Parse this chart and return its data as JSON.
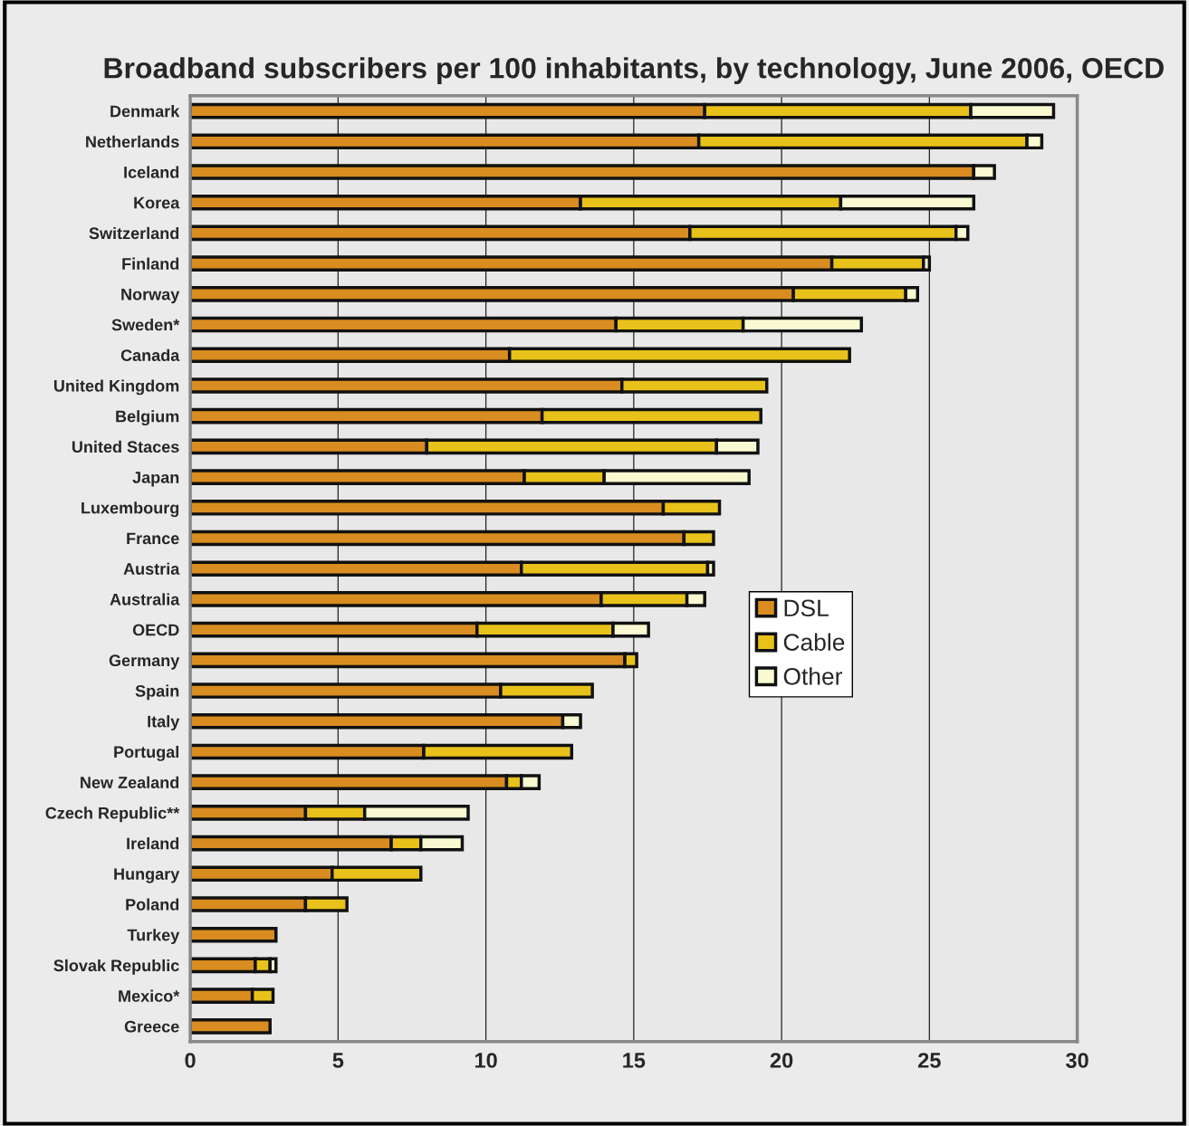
{
  "chart_data": {
    "type": "bar",
    "orientation": "horizontal",
    "stacked": true,
    "title": "Broadband subscribers per 100 inhabitants, by technology, June 2006, OECD",
    "categories": [
      "Denmark",
      "Netherlands",
      "Iceland",
      "Korea",
      "Switzerland",
      "Finland",
      "Norway",
      "Sweden*",
      "Canada",
      "United Kingdom",
      "Belgium",
      "United Staces",
      "Japan",
      "Luxembourg",
      "France",
      "Austria",
      "Australia",
      "OECD",
      "Germany",
      "Spain",
      "Italy",
      "Portugal",
      "New Zealand",
      "Czech Republic**",
      "Ireland",
      "Hungary",
      "Poland",
      "Turkey",
      "Slovak Republic",
      "Mexico*",
      "Greece"
    ],
    "series": [
      {
        "name": "DSL",
        "color": "#d98c20",
        "values": [
          17.4,
          17.2,
          26.5,
          13.2,
          16.9,
          21.7,
          20.4,
          14.4,
          10.8,
          14.6,
          11.9,
          8.0,
          11.3,
          16.0,
          16.7,
          11.2,
          13.9,
          9.7,
          14.7,
          10.5,
          12.6,
          7.9,
          10.7,
          3.9,
          6.8,
          4.8,
          3.9,
          2.9,
          2.2,
          2.1,
          2.7
        ]
      },
      {
        "name": "Cable",
        "color": "#e8c21a",
        "values": [
          9.0,
          11.1,
          0,
          8.8,
          9.0,
          3.1,
          3.8,
          4.3,
          11.5,
          4.9,
          7.4,
          9.8,
          2.7,
          1.9,
          1.0,
          6.3,
          2.9,
          4.6,
          0.4,
          3.1,
          0,
          5.0,
          0.5,
          2.0,
          1.0,
          3.0,
          1.4,
          0,
          0.5,
          0.7,
          0
        ]
      },
      {
        "name": "Other",
        "color": "#fafad2",
        "values": [
          2.8,
          0.5,
          0.7,
          4.5,
          0.4,
          0.2,
          0.4,
          4.0,
          0,
          0,
          0,
          1.4,
          4.9,
          0,
          0,
          0.2,
          0.6,
          1.2,
          0,
          0,
          0.6,
          0,
          0.6,
          3.5,
          1.4,
          0,
          0,
          0,
          0.2,
          0,
          0
        ]
      }
    ],
    "xlim": [
      0,
      30
    ],
    "xticks": [
      0,
      5,
      10,
      15,
      20,
      25,
      30
    ],
    "grid": "x",
    "legend": "right"
  }
}
